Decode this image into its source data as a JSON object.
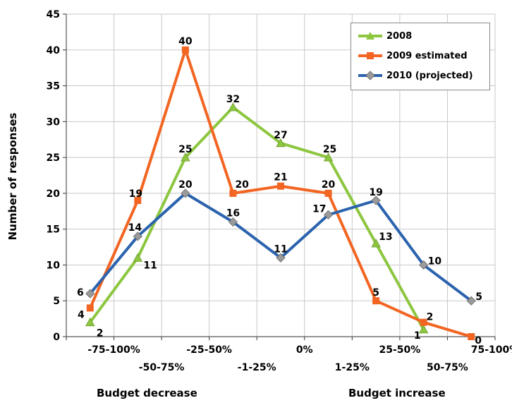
{
  "chart_data": {
    "type": "line",
    "categories": [
      "-75-100%",
      "-50-75%",
      "-25-50%",
      "-1-25%",
      "0%",
      "1-25%",
      "25-50%",
      "50-75%",
      "75-100%"
    ],
    "series": [
      {
        "name": "2008",
        "color": "#8DC63F",
        "marker": "triangle",
        "values": [
          2,
          11,
          25,
          32,
          27,
          25,
          13,
          1,
          null
        ]
      },
      {
        "name": "2009 estimated",
        "color": "#F26522",
        "marker": "square",
        "values": [
          4,
          19,
          40,
          20,
          21,
          20,
          5,
          2,
          0
        ]
      },
      {
        "name": "2010 (projected)",
        "color": "#2B63AE",
        "marker": "diamond",
        "values": [
          6,
          14,
          20,
          16,
          11,
          17,
          19,
          10,
          5
        ]
      }
    ],
    "data_labels": [
      {
        "series": 0,
        "index": 0,
        "text": "2"
      },
      {
        "series": 0,
        "index": 1,
        "text": "11"
      },
      {
        "series": 0,
        "index": 2,
        "text": "25"
      },
      {
        "series": 0,
        "index": 3,
        "text": "32"
      },
      {
        "series": 0,
        "index": 4,
        "text": "27"
      },
      {
        "series": 0,
        "index": 5,
        "text": "25"
      },
      {
        "series": 0,
        "index": 6,
        "text": "13"
      },
      {
        "series": 0,
        "index": 7,
        "text": "1"
      },
      {
        "series": 1,
        "index": 0,
        "text": "4"
      },
      {
        "series": 1,
        "index": 1,
        "text": "19"
      },
      {
        "series": 1,
        "index": 2,
        "text": "40"
      },
      {
        "series": 1,
        "index": 3,
        "text": "20"
      },
      {
        "series": 1,
        "index": 4,
        "text": "21"
      },
      {
        "series": 1,
        "index": 5,
        "text": "20"
      },
      {
        "series": 1,
        "index": 6,
        "text": "5"
      },
      {
        "series": 1,
        "index": 7,
        "text": "2"
      },
      {
        "series": 1,
        "index": 8,
        "text": "0"
      },
      {
        "series": 2,
        "index": 0,
        "text": "6"
      },
      {
        "series": 2,
        "index": 1,
        "text": "14"
      },
      {
        "series": 2,
        "index": 2,
        "text": "20"
      },
      {
        "series": 2,
        "index": 3,
        "text": "16"
      },
      {
        "series": 2,
        "index": 4,
        "text": "11"
      },
      {
        "series": 2,
        "index": 5,
        "text": "17"
      },
      {
        "series": 2,
        "index": 6,
        "text": "19"
      },
      {
        "series": 2,
        "index": 7,
        "text": "10"
      },
      {
        "series": 2,
        "index": 8,
        "text": "5"
      }
    ],
    "ylabel": "Number of responses",
    "ylim": [
      0,
      45
    ],
    "yticks": [
      0,
      5,
      10,
      15,
      20,
      25,
      30,
      35,
      40,
      45
    ],
    "grid": true,
    "legend": "top-right",
    "group_labels": [
      "Budget decrease",
      "Budget increase"
    ]
  }
}
